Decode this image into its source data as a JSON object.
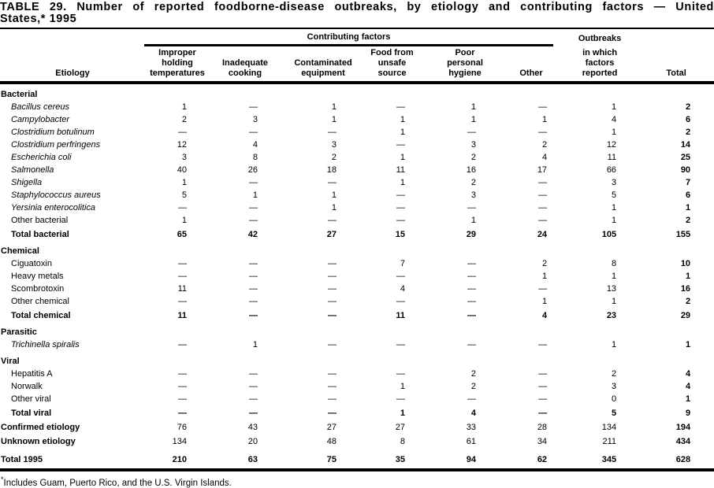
{
  "title": {
    "line1": "TABLE 29. Number of reported foodborne-disease outbreaks, by etiology and contributing factors — United",
    "line2": "States,* 1995"
  },
  "header": {
    "etiology": "Etiology",
    "contributing_factors": "Contributing factors",
    "outbreaks": "Outbreaks",
    "columns": [
      "Improper\nholding\ntemperatures",
      "Inadequate\ncooking",
      "Contaminated\nequipment",
      "Food from\nunsafe\nsource",
      "Poor\npersonal\nhygiene",
      "Other",
      "in which\nfactors\nreported",
      "Total"
    ]
  },
  "table": {
    "rows": [
      {
        "label": "Bacterial",
        "type": "section"
      },
      {
        "label": "Bacillus cereus",
        "type": "item",
        "italic": true,
        "values": [
          "1",
          "—",
          "1",
          "—",
          "1",
          "—",
          "1",
          "2"
        ]
      },
      {
        "label": "Campylobacter",
        "type": "item",
        "italic": true,
        "values": [
          "2",
          "3",
          "1",
          "1",
          "1",
          "1",
          "4",
          "6"
        ]
      },
      {
        "label": "Clostridium botulinum",
        "type": "item",
        "italic": true,
        "values": [
          "—",
          "—",
          "—",
          "1",
          "—",
          "—",
          "1",
          "2"
        ]
      },
      {
        "label": "Clostridium perfringens",
        "type": "item",
        "italic": true,
        "values": [
          "12",
          "4",
          "3",
          "—",
          "3",
          "2",
          "12",
          "14"
        ]
      },
      {
        "label": "Escherichia coli",
        "type": "item",
        "italic": true,
        "values": [
          "3",
          "8",
          "2",
          "1",
          "2",
          "4",
          "11",
          "25"
        ]
      },
      {
        "label": "Salmonella",
        "type": "item",
        "italic": true,
        "values": [
          "40",
          "26",
          "18",
          "11",
          "16",
          "17",
          "66",
          "90"
        ]
      },
      {
        "label": "Shigella",
        "type": "item",
        "italic": true,
        "values": [
          "1",
          "—",
          "—",
          "1",
          "2",
          "—",
          "3",
          "7"
        ]
      },
      {
        "label": "Staphylococcus aureus",
        "type": "item",
        "italic": true,
        "values": [
          "5",
          "1",
          "1",
          "—",
          "3",
          "—",
          "5",
          "6"
        ]
      },
      {
        "label": "Yersinia enterocolitica",
        "type": "item",
        "italic": true,
        "values": [
          "—",
          "—",
          "1",
          "—",
          "—",
          "—",
          "1",
          "1"
        ]
      },
      {
        "label": "Other bacterial",
        "type": "item",
        "italic": false,
        "values": [
          "1",
          "—",
          "—",
          "—",
          "1",
          "—",
          "1",
          "2"
        ]
      },
      {
        "label": "Total bacterial",
        "type": "total",
        "values": [
          "65",
          "42",
          "27",
          "15",
          "29",
          "24",
          "105",
          "155"
        ]
      },
      {
        "label": "Chemical",
        "type": "section"
      },
      {
        "label": "Ciguatoxin",
        "type": "item",
        "italic": false,
        "values": [
          "—",
          "—",
          "—",
          "7",
          "—",
          "2",
          "8",
          "10"
        ]
      },
      {
        "label": "Heavy metals",
        "type": "item",
        "italic": false,
        "values": [
          "—",
          "—",
          "—",
          "—",
          "—",
          "1",
          "1",
          "1"
        ]
      },
      {
        "label": "Scombrotoxin",
        "type": "item",
        "italic": false,
        "values": [
          "11",
          "—",
          "—",
          "4",
          "—",
          "—",
          "13",
          "16"
        ]
      },
      {
        "label": "Other chemical",
        "type": "item",
        "italic": false,
        "values": [
          "—",
          "—",
          "—",
          "—",
          "—",
          "1",
          "1",
          "2"
        ]
      },
      {
        "label": "Total chemical",
        "type": "total",
        "values": [
          "11",
          "—",
          "—",
          "11",
          "—",
          "4",
          "23",
          "29"
        ]
      },
      {
        "label": "Parasitic",
        "type": "section"
      },
      {
        "label": "Trichinella spiralis",
        "type": "item",
        "italic": true,
        "values": [
          "—",
          "1",
          "—",
          "—",
          "—",
          "—",
          "1",
          "1"
        ]
      },
      {
        "label": "Viral",
        "type": "section"
      },
      {
        "label": "Hepatitis A",
        "type": "item",
        "italic": false,
        "values": [
          "—",
          "—",
          "—",
          "—",
          "2",
          "—",
          "2",
          "4"
        ]
      },
      {
        "label": "Norwalk",
        "type": "item",
        "italic": false,
        "values": [
          "—",
          "—",
          "—",
          "1",
          "2",
          "—",
          "3",
          "4"
        ]
      },
      {
        "label": "Other viral",
        "type": "item",
        "italic": false,
        "values": [
          "—",
          "—",
          "—",
          "—",
          "—",
          "—",
          "0",
          "1"
        ]
      },
      {
        "label": "Total viral",
        "type": "total",
        "values": [
          "—",
          "—",
          "—",
          "1",
          "4",
          "—",
          "5",
          "9"
        ]
      },
      {
        "label": "Confirmed etiology",
        "type": "summary",
        "values": [
          "76",
          "43",
          "27",
          "27",
          "33",
          "28",
          "134",
          "194"
        ]
      },
      {
        "label": "Unknown etiology",
        "type": "summary",
        "values": [
          "134",
          "20",
          "48",
          "8",
          "61",
          "34",
          "211",
          "434"
        ]
      },
      {
        "label": "Total 1995",
        "type": "grand",
        "values": [
          "210",
          "63",
          "75",
          "35",
          "94",
          "62",
          "345",
          "628"
        ]
      }
    ]
  },
  "footnote": {
    "marker": "*",
    "text": "Includes Guam, Puerto Rico, and the U.S. Virgin Islands."
  }
}
